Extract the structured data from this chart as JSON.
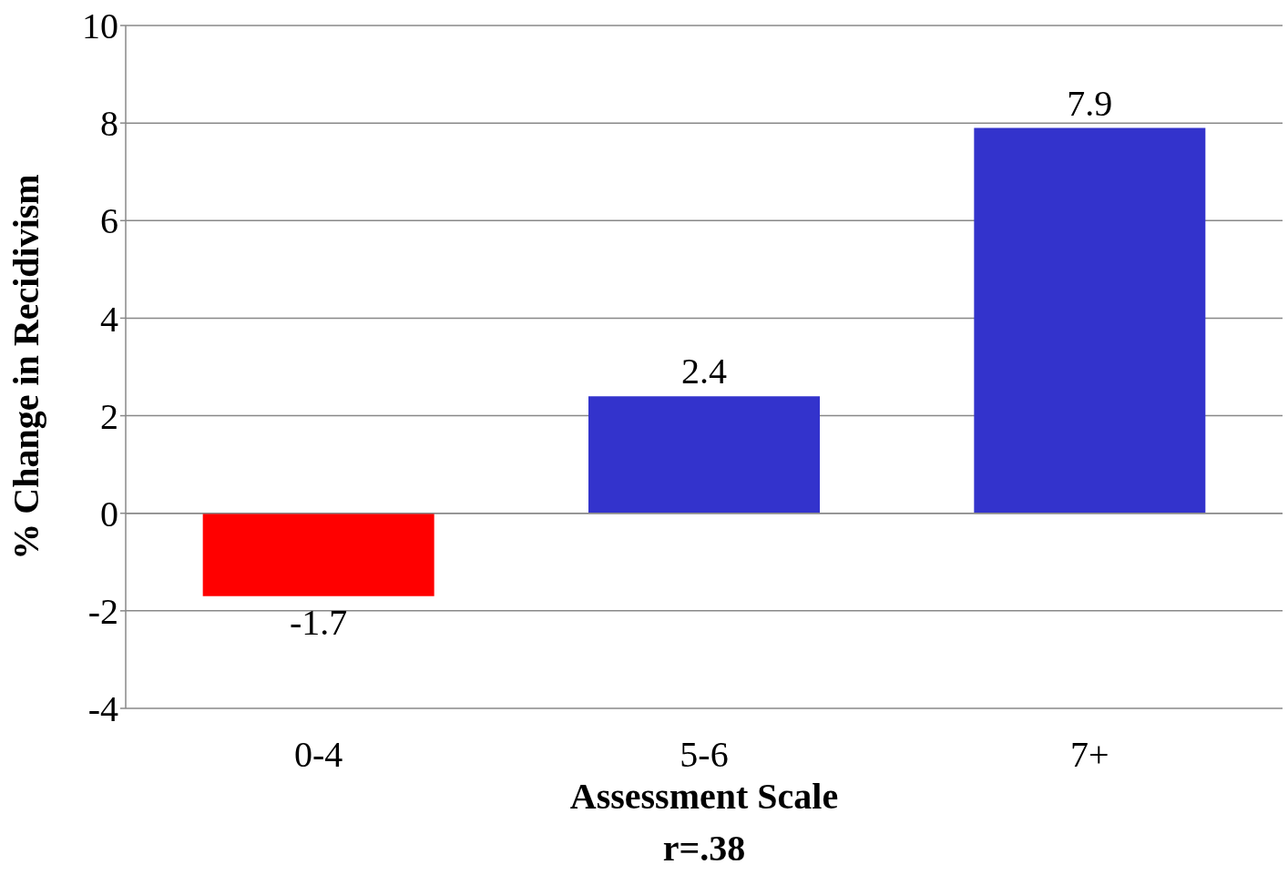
{
  "chart_data": {
    "type": "bar",
    "xlabel": "Assessment Scale",
    "ylabel": "% Change in Recidivism",
    "categories": [
      "0-4",
      "5-6",
      "7+"
    ],
    "values": [
      -1.7,
      2.4,
      7.9
    ],
    "colors": [
      "#ff0000",
      "#3333cc",
      "#3333cc"
    ],
    "ylim": [
      -4,
      10
    ],
    "yticks": [
      -4,
      -2,
      0,
      2,
      4,
      6,
      8,
      10
    ],
    "grid": "y",
    "data_labels": true,
    "annotations": [
      "r=.38"
    ]
  }
}
